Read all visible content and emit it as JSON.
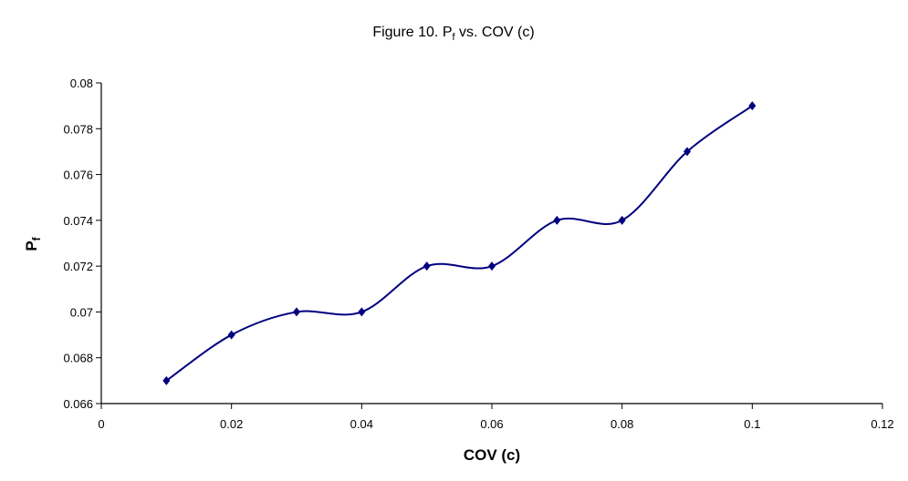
{
  "chart_data": {
    "type": "line",
    "title_prefix": "Figure 10.  P",
    "title_sub": "f",
    "title_suffix": " vs. COV (c)",
    "xlabel": "COV (c)",
    "ylabel_main": "P",
    "ylabel_sub": "f",
    "xlim": [
      0,
      0.12
    ],
    "ylim": [
      0.066,
      0.08
    ],
    "xticks": [
      "0",
      "0.02",
      "0.04",
      "0.06",
      "0.08",
      "0.1",
      "0.12"
    ],
    "yticks": [
      "0.066",
      "0.068",
      "0.07",
      "0.072",
      "0.074",
      "0.076",
      "0.078",
      "0.08"
    ],
    "grid": false,
    "series": [
      {
        "name": "Pf",
        "color": "#000080",
        "smooth": true,
        "marker": "diamond",
        "x": [
          0.01,
          0.02,
          0.03,
          0.04,
          0.05,
          0.06,
          0.07,
          0.08,
          0.09,
          0.1
        ],
        "y": [
          0.067,
          0.069,
          0.07,
          0.07,
          0.072,
          0.072,
          0.074,
          0.074,
          0.077,
          0.079
        ]
      }
    ]
  }
}
